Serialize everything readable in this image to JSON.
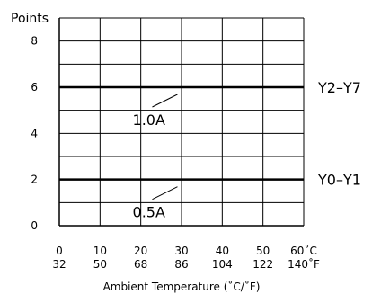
{
  "chart_data": {
    "type": "line",
    "ylabel": "Points",
    "xlabel": "Ambient Temperature (˚C/˚F)",
    "x_celsius": [
      0,
      10,
      20,
      30,
      40,
      50,
      60
    ],
    "x_fahrenheit": [
      32,
      50,
      68,
      86,
      104,
      122,
      140
    ],
    "x_tick_labels_c": [
      "0",
      "10",
      "20",
      "30",
      "40",
      "50",
      "60˚C"
    ],
    "x_tick_labels_f": [
      "32",
      "50",
      "68",
      "86",
      "104",
      "122",
      "140˚F"
    ],
    "xlim": [
      0,
      60
    ],
    "y_ticks": [
      0,
      2,
      4,
      6,
      8
    ],
    "ylim": [
      0,
      9
    ],
    "grid": true,
    "series": [
      {
        "name": "Y2–Y7",
        "x": [
          0,
          60
        ],
        "y": [
          6,
          6
        ],
        "annotation": "1.0A"
      },
      {
        "name": "Y0–Y1",
        "x": [
          0,
          60
        ],
        "y": [
          2,
          2
        ],
        "annotation": "0.5A"
      }
    ]
  }
}
